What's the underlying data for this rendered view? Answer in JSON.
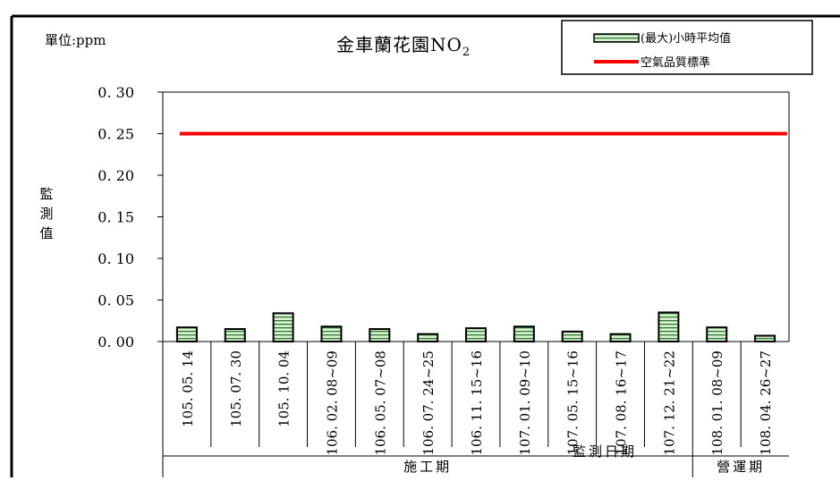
{
  "chart_data": {
    "type": "bar",
    "title": "金車蘭花園NO",
    "title_subscript": "2",
    "unit_label": "單位:ppm",
    "ylabel": "監測值",
    "xlabel": "監測日期",
    "ylim": [
      0,
      0.3
    ],
    "yticks": [
      "0.30",
      "0.25",
      "0.20",
      "0.15",
      "0.10",
      "0.05",
      "0.00"
    ],
    "categories": [
      "105.05.14",
      "105.07.30",
      "105.10.04",
      "106.02.08~09",
      "106.05.07~08",
      "106.07.24~25",
      "106.11.15~16",
      "107.01.09~10",
      "107.05.15~16",
      "107.08.16~17",
      "107.12.21~22",
      "108.01.08~09",
      "108.04.26~27"
    ],
    "series": [
      {
        "name": "(最大)小時平均值",
        "values": [
          0.017,
          0.015,
          0.034,
          0.018,
          0.015,
          0.009,
          0.016,
          0.018,
          0.012,
          0.009,
          0.035,
          0.017,
          0.007
        ],
        "fill": "#d9f0d3",
        "stripe": "#2e7d32"
      }
    ],
    "reference_line": {
      "name": "空氣品質標準",
      "value": 0.25,
      "color": "#ff0000"
    },
    "groups": [
      {
        "label": "施工期"
      },
      {
        "label": "營運期"
      }
    ],
    "legend_position": "top-right",
    "grid": false
  }
}
